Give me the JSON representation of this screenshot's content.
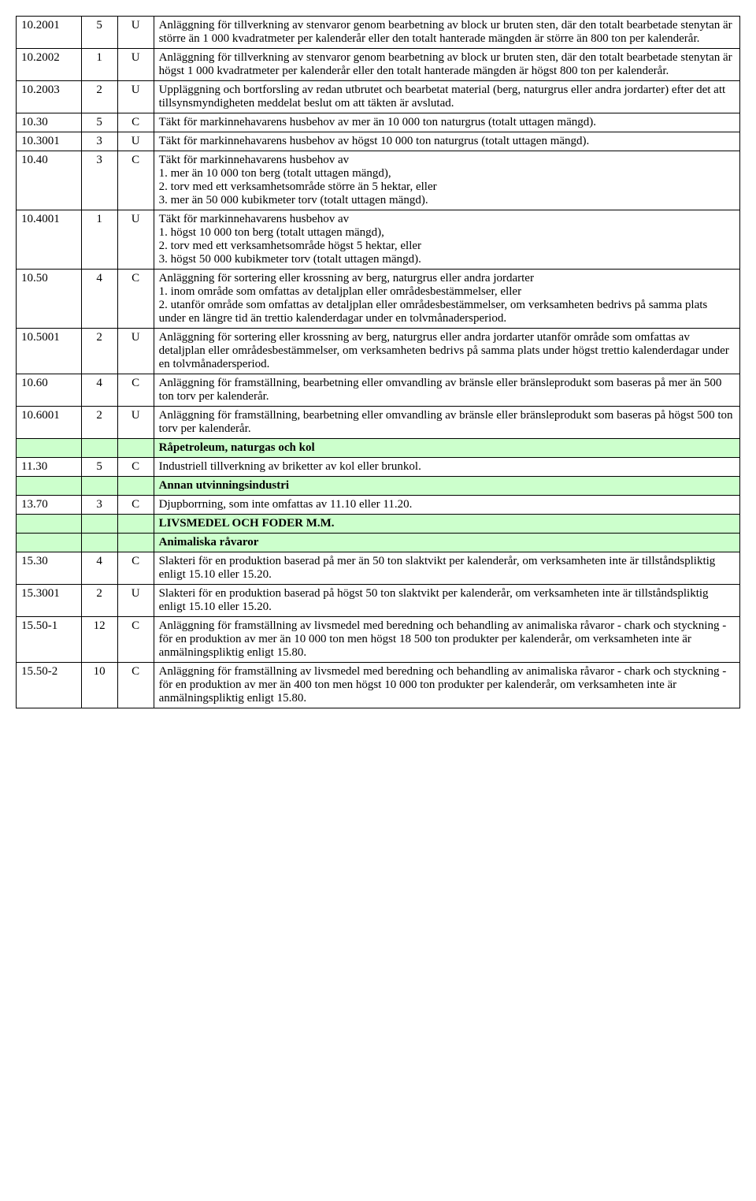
{
  "table": {
    "col_widths_pct": [
      9,
      5,
      5,
      81
    ],
    "section_bg": "#ccffcc",
    "border_color": "#000000",
    "font_family": "Times New Roman",
    "base_fontsize_pt": 11,
    "rows": [
      {
        "type": "data",
        "code": "10.2001",
        "num": "5",
        "tag": "U",
        "desc": "Anläggning för tillverkning av stenvaror genom bearbetning av block ur bruten sten, där den totalt bearbetade stenytan är större än 1 000 kvadratmeter per kalenderår eller den totalt hanterade mängden är större än 800 ton per kalenderår."
      },
      {
        "type": "data",
        "code": "10.2002",
        "num": "1",
        "tag": "U",
        "desc": "Anläggning för tillverkning av stenvaror genom bearbetning av block ur bruten sten, där den totalt bearbetade stenytan är högst 1 000 kvadratmeter per kalenderår eller den totalt hanterade mängden är högst 800 ton per kalenderår."
      },
      {
        "type": "data",
        "code": "10.2003",
        "num": "2",
        "tag": "U",
        "desc": "Uppläggning och bortforsling av redan utbrutet och bearbetat material (berg, naturgrus eller andra jordarter) efter det att tillsynsmyndigheten meddelat beslut om att täkten är avslutad."
      },
      {
        "type": "data",
        "code": "10.30",
        "num": "5",
        "tag": "C",
        "desc": "Täkt för markinnehavarens husbehov av mer än 10 000 ton naturgrus (totalt uttagen mängd)."
      },
      {
        "type": "data",
        "code": "10.3001",
        "num": "3",
        "tag": "U",
        "desc": "Täkt för markinnehavarens husbehov av  högst 10 000 ton naturgrus (totalt uttagen mängd)."
      },
      {
        "type": "data",
        "code": "10.40",
        "num": "3",
        "tag": "C",
        "desc": "Täkt för markinnehavarens husbehov av\n1. mer än 10 000 ton berg (totalt uttagen mängd),\n2. torv med ett verksamhetsområde större än 5 hektar, eller\n3. mer än 50 000 kubikmeter torv (totalt uttagen mängd)."
      },
      {
        "type": "data",
        "code": "10.4001",
        "num": "1",
        "tag": "U",
        "desc": "Täkt för markinnehavarens husbehov av\n1. högst 10 000 ton berg (totalt uttagen mängd),\n2. torv med ett verksamhetsområde högst  5 hektar, eller\n3. högst 50 000 kubikmeter torv (totalt uttagen mängd)."
      },
      {
        "type": "data",
        "code": "10.50",
        "num": "4",
        "tag": "C",
        "desc": "Anläggning för sortering eller krossning av berg, naturgrus eller andra jordarter\n1. inom område som omfattas av detaljplan eller områdesbestämmelser, eller\n2. utanför område som omfattas av detaljplan eller områdesbestämmelser, om verksamheten bedrivs på samma plats under en längre tid än trettio kalenderdagar under en tolvmånadersperiod."
      },
      {
        "type": "data",
        "code": "10.5001",
        "num": "2",
        "tag": "U",
        "desc": "Anläggning för sortering eller krossning av berg, naturgrus eller andra jordarter utanför område som omfattas av detaljplan eller områdesbestämmelser, om verksamheten bedrivs på samma plats under högst trettio kalenderdagar under en tolvmånadersperiod."
      },
      {
        "type": "data",
        "code": "10.60",
        "num": "4",
        "tag": "C",
        "desc": "Anläggning för framställning, bearbetning eller omvandling av bränsle eller bränsleprodukt som baseras på mer än 500 ton torv per kalenderår."
      },
      {
        "type": "data",
        "code": "10.6001",
        "num": "2",
        "tag": "U",
        "desc": "Anläggning för framställning, bearbetning eller omvandling av bränsle eller bränsleprodukt som baseras på högst 500 ton torv per kalenderår."
      },
      {
        "type": "section",
        "desc": "Råpetroleum, naturgas och kol"
      },
      {
        "type": "data",
        "code": "11.30",
        "num": "5",
        "tag": "C",
        "desc": "Industriell tillverkning av briketter av kol eller brunkol."
      },
      {
        "type": "section",
        "desc": "Annan utvinningsindustri"
      },
      {
        "type": "data",
        "code": "13.70",
        "num": "3",
        "tag": "C",
        "desc": "Djupborrning, som inte omfattas av 11.10 eller 11.20."
      },
      {
        "type": "section",
        "desc": "LIVSMEDEL OCH FODER M.M."
      },
      {
        "type": "section",
        "desc": "Animaliska råvaror"
      },
      {
        "type": "data",
        "code": "15.30",
        "num": "4",
        "tag": "C",
        "desc": "Slakteri för en produktion baserad på mer än 50 ton slaktvikt per kalenderår, om verksamheten inte är tillståndspliktig enligt 15.10 eller 15.20."
      },
      {
        "type": "data",
        "code": "15.3001",
        "num": "2",
        "tag": "U",
        "desc": "Slakteri för en produktion baserad på högst  50 ton slaktvikt per kalenderår, om verksamheten inte är tillståndspliktig enligt 15.10 eller 15.20."
      },
      {
        "type": "data",
        "code": "15.50-1",
        "num": "12",
        "tag": "C",
        "desc": "Anläggning för framställning av livsmedel med beredning och behandling av animaliska råvaror - chark och styckning - för en produktion av mer än 10 000 ton men högst 18 500 ton produkter per kalenderår, om verksamheten inte är anmälningspliktig enligt 15.80."
      },
      {
        "type": "data",
        "code": "15.50-2",
        "num": "10",
        "tag": "C",
        "desc": "Anläggning för framställning av livsmedel med beredning och behandling av animaliska råvaror - chark och styckning - för en produktion av mer än 400 ton men högst 10 000 ton produkter per kalenderår, om verksamheten inte är anmälningspliktig enligt 15.80."
      }
    ]
  }
}
